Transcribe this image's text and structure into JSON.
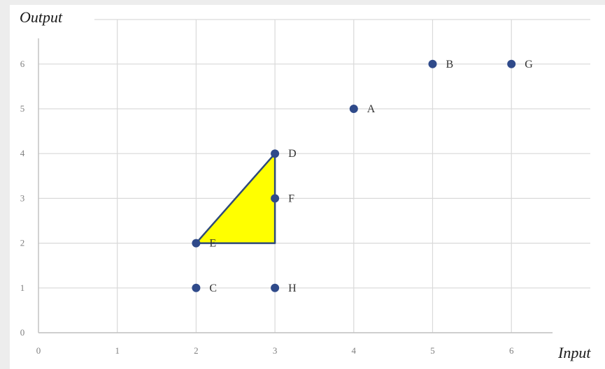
{
  "chart_data": {
    "type": "scatter",
    "title": "",
    "xlabel": "Input",
    "ylabel": "Output",
    "xlim": [
      0,
      7
    ],
    "ylim": [
      0,
      7
    ],
    "x_ticks": [
      "0",
      "1",
      "2",
      "3",
      "4",
      "5",
      "6"
    ],
    "y_ticks": [
      "0",
      "1",
      "2",
      "3",
      "4",
      "5",
      "6"
    ],
    "grid": true,
    "points": [
      {
        "label": "A",
        "x": 4,
        "y": 5
      },
      {
        "label": "B",
        "x": 5,
        "y": 6
      },
      {
        "label": "G",
        "x": 6,
        "y": 6
      },
      {
        "label": "D",
        "x": 3,
        "y": 4
      },
      {
        "label": "F",
        "x": 3,
        "y": 3
      },
      {
        "label": "E",
        "x": 2,
        "y": 2
      },
      {
        "label": "C",
        "x": 2,
        "y": 1
      },
      {
        "label": "H",
        "x": 3,
        "y": 1
      }
    ],
    "shaded_triangle": {
      "vertices": [
        [
          2,
          2
        ],
        [
          3,
          4
        ],
        [
          3,
          2
        ]
      ],
      "fill": "#ffff00",
      "stroke": "#2f4a7a"
    },
    "colors": {
      "point": "#2f4a8a",
      "grid": "#d9d9d9",
      "axis": "#bfbfbf"
    }
  }
}
